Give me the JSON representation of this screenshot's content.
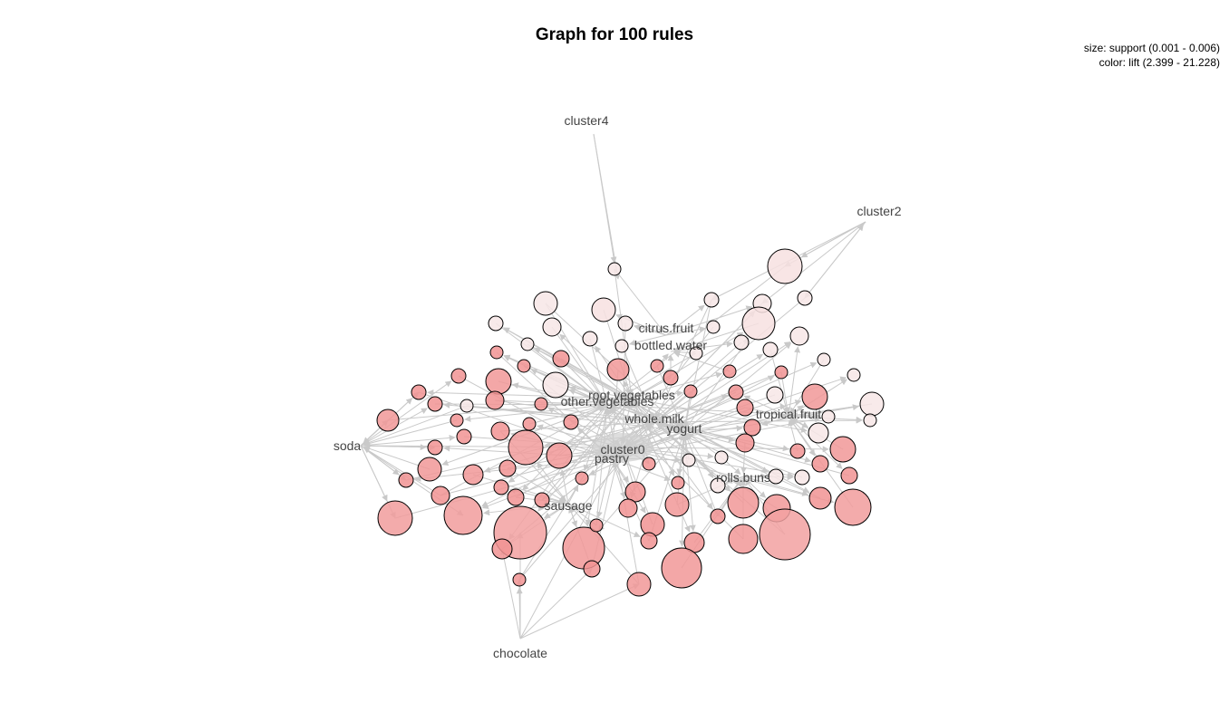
{
  "title": "Graph for 100 rules",
  "legend": {
    "size": "size: support (0.001 - 0.006)",
    "color": "color: lift (2.399 - 21.228)"
  },
  "colors": {
    "edge": "#c9c9c9",
    "low_lift": "#f7e6e6",
    "high_lift": "#f08a8a",
    "label": "#444444"
  },
  "items": [
    {
      "name": "cluster4"
    },
    {
      "name": "cluster2"
    },
    {
      "name": "citrus.fruit"
    },
    {
      "name": "bottled.water"
    },
    {
      "name": "root.vegetables"
    },
    {
      "name": "other.vegetables"
    },
    {
      "name": "whole.milk"
    },
    {
      "name": "yogurt"
    },
    {
      "name": "tropical.fruit"
    },
    {
      "name": "soda"
    },
    {
      "name": "cluster0"
    },
    {
      "name": "pastry"
    },
    {
      "name": "rolls.buns"
    },
    {
      "name": "sausage"
    },
    {
      "name": "chocolate"
    }
  ]
}
